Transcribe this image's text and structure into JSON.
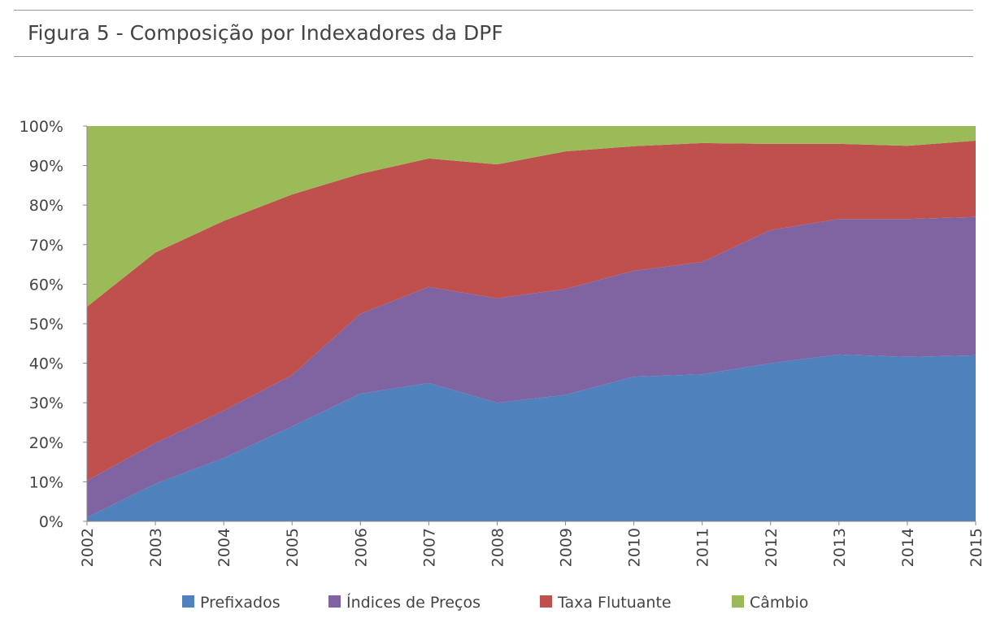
{
  "chart_data": {
    "type": "area",
    "stacked": true,
    "title": "Figura 5 - Composição por Indexadores da DPF",
    "xlabel": "",
    "ylabel": "",
    "ylim": [
      0,
      100
    ],
    "y_ticks": [
      "0%",
      "10%",
      "20%",
      "30%",
      "40%",
      "50%",
      "60%",
      "70%",
      "80%",
      "90%",
      "100%"
    ],
    "categories": [
      "2002",
      "2003",
      "2004",
      "2005",
      "2006",
      "2007",
      "2008",
      "2009",
      "2010",
      "2011",
      "2012",
      "2013",
      "2014",
      "2015"
    ],
    "legend_position": "bottom",
    "grid": false,
    "series": [
      {
        "name": "Prefixados",
        "color": "#4f81bd",
        "values": [
          1,
          9.5,
          16,
          24,
          32.3,
          35,
          30,
          32,
          36.6,
          37.2,
          40,
          42.2,
          41.6,
          42
        ]
      },
      {
        "name": "Índices de Preços",
        "color": "#8064a2",
        "values": [
          9.3,
          10.3,
          12,
          13,
          20.2,
          24.3,
          26.4,
          26.8,
          26.8,
          28.4,
          33.7,
          34.3,
          34.9,
          35
        ]
      },
      {
        "name": "Taxa Flutuante",
        "color": "#c0504d",
        "values": [
          44,
          48.2,
          48,
          45.7,
          35.4,
          32.5,
          33.9,
          34.8,
          31.5,
          30.1,
          21.8,
          19,
          18.5,
          19.3
        ]
      },
      {
        "name": "Câmbio",
        "color": "#9bbb59",
        "values": [
          45.7,
          32,
          24,
          17.3,
          12.1,
          8.2,
          9.7,
          6.4,
          5.1,
          4.3,
          4.5,
          4.5,
          5,
          3.7
        ]
      }
    ]
  }
}
